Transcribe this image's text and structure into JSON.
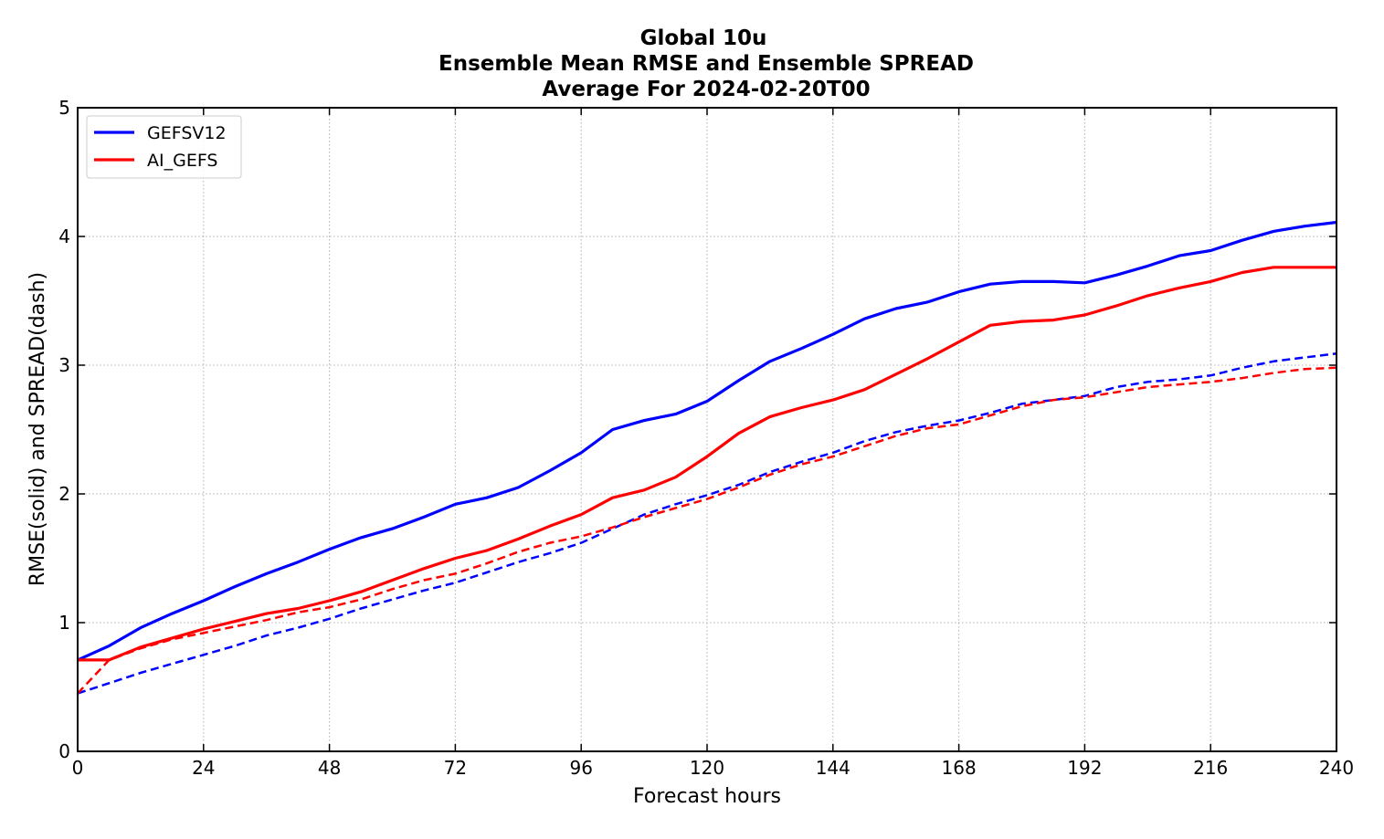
{
  "chart_data": {
    "type": "line",
    "title": [
      "Global 10u",
      "Ensemble Mean RMSE and Ensemble SPREAD",
      "Average For 2024-02-20T00"
    ],
    "xlabel": "Forecast hours",
    "ylabel": "RMSE(solid) and SPREAD(dash)",
    "xlim": [
      0,
      240
    ],
    "ylim": [
      0,
      5
    ],
    "xticks": [
      0,
      24,
      48,
      72,
      96,
      120,
      144,
      168,
      192,
      216,
      240
    ],
    "yticks": [
      0,
      1,
      2,
      3,
      4,
      5
    ],
    "grid": true,
    "legend_position": "top-left",
    "x": [
      0,
      6,
      12,
      18,
      24,
      30,
      36,
      42,
      48,
      54,
      60,
      66,
      72,
      78,
      84,
      90,
      96,
      102,
      108,
      114,
      120,
      126,
      132,
      138,
      144,
      150,
      156,
      162,
      168,
      174,
      180,
      186,
      192,
      198,
      204,
      210,
      216,
      222,
      228,
      234,
      240
    ],
    "series": [
      {
        "name": "GEFSV12",
        "color": "#0000ff",
        "rmse": [
          0.71,
          0.82,
          0.96,
          1.07,
          1.17,
          1.28,
          1.38,
          1.47,
          1.57,
          1.66,
          1.73,
          1.82,
          1.92,
          1.97,
          2.05,
          2.18,
          2.32,
          2.5,
          2.57,
          2.62,
          2.72,
          2.88,
          3.03,
          3.13,
          3.24,
          3.36,
          3.44,
          3.49,
          3.57,
          3.63,
          3.65,
          3.65,
          3.64,
          3.7,
          3.77,
          3.85,
          3.89,
          3.97,
          4.04,
          4.08,
          4.11
        ],
        "spread": [
          0.45,
          0.53,
          0.61,
          0.68,
          0.75,
          0.82,
          0.9,
          0.96,
          1.03,
          1.11,
          1.18,
          1.25,
          1.31,
          1.39,
          1.47,
          1.54,
          1.62,
          1.73,
          1.84,
          1.92,
          1.99,
          2.07,
          2.17,
          2.25,
          2.32,
          2.41,
          2.48,
          2.53,
          2.57,
          2.63,
          2.7,
          2.73,
          2.76,
          2.83,
          2.87,
          2.89,
          2.92,
          2.98,
          3.03,
          3.06,
          3.09
        ]
      },
      {
        "name": "AI_GEFS",
        "color": "#ff0000",
        "rmse": [
          0.71,
          0.71,
          0.81,
          0.88,
          0.95,
          1.01,
          1.07,
          1.11,
          1.17,
          1.24,
          1.33,
          1.42,
          1.5,
          1.56,
          1.65,
          1.75,
          1.84,
          1.97,
          2.03,
          2.13,
          2.29,
          2.47,
          2.6,
          2.67,
          2.73,
          2.81,
          2.93,
          3.05,
          3.18,
          3.31,
          3.34,
          3.35,
          3.39,
          3.46,
          3.54,
          3.6,
          3.65,
          3.72,
          3.76,
          3.76,
          3.76
        ],
        "spread": [
          0.45,
          0.71,
          0.8,
          0.87,
          0.92,
          0.97,
          1.02,
          1.08,
          1.12,
          1.18,
          1.26,
          1.33,
          1.38,
          1.46,
          1.55,
          1.62,
          1.67,
          1.74,
          1.82,
          1.89,
          1.96,
          2.05,
          2.15,
          2.23,
          2.29,
          2.37,
          2.45,
          2.51,
          2.54,
          2.61,
          2.68,
          2.73,
          2.75,
          2.79,
          2.83,
          2.85,
          2.87,
          2.9,
          2.94,
          2.97,
          2.98
        ]
      }
    ]
  }
}
